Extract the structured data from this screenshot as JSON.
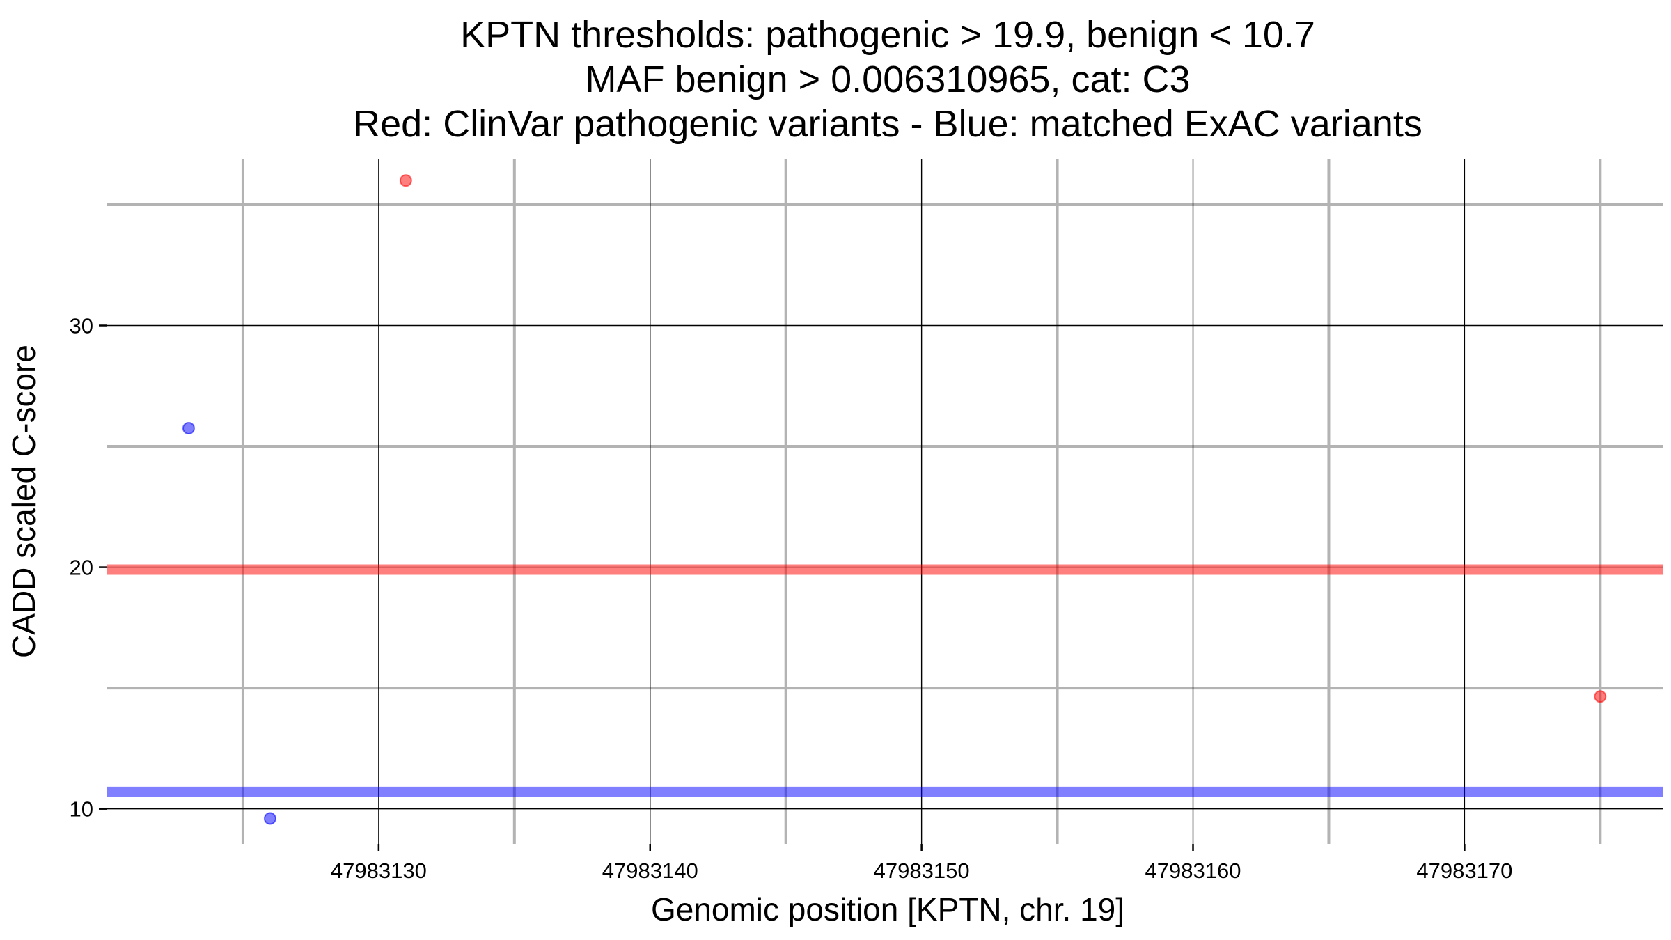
{
  "chart_data": {
    "type": "scatter",
    "title": [
      "KPTN thresholds: pathogenic > 19.9, benign < 10.7",
      "MAF benign > 0.006310965, cat: C3",
      "Red: ClinVar pathogenic variants - Blue: matched ExAC variants"
    ],
    "xlabel": "Genomic position [KPTN, chr. 19]",
    "ylabel": "CADD scaled C-score",
    "xlim": [
      47983120.0,
      47983177.3
    ],
    "ylim": [
      8.55,
      36.9
    ],
    "x_major_ticks": [
      47983130,
      47983140,
      47983150,
      47983160,
      47983170
    ],
    "x_tick_labels": [
      "47983130",
      "47983140",
      "47983150",
      "47983160",
      "47983170"
    ],
    "x_minor_ticks": [
      47983125,
      47983135,
      47983145,
      47983155,
      47983165,
      47983175
    ],
    "y_major_ticks": [
      10,
      20,
      30
    ],
    "y_tick_labels": [
      "10",
      "20",
      "30"
    ],
    "y_minor_ticks": [
      15,
      25,
      35
    ],
    "grid": true,
    "thresholds": [
      {
        "name": "pathogenic threshold",
        "value": 19.9,
        "color": "#ff0000"
      },
      {
        "name": "benign threshold",
        "value": 10.7,
        "color": "#0000ff"
      }
    ],
    "series": [
      {
        "name": "ClinVar pathogenic variants",
        "color": "#ff0000",
        "points": [
          {
            "x": 47983131,
            "y": 36.0
          },
          {
            "x": 47983175,
            "y": 14.65
          }
        ]
      },
      {
        "name": "matched ExAC variants",
        "color": "#0000ff",
        "points": [
          {
            "x": 47983123,
            "y": 25.75
          },
          {
            "x": 47983126,
            "y": 9.6
          }
        ]
      }
    ]
  }
}
